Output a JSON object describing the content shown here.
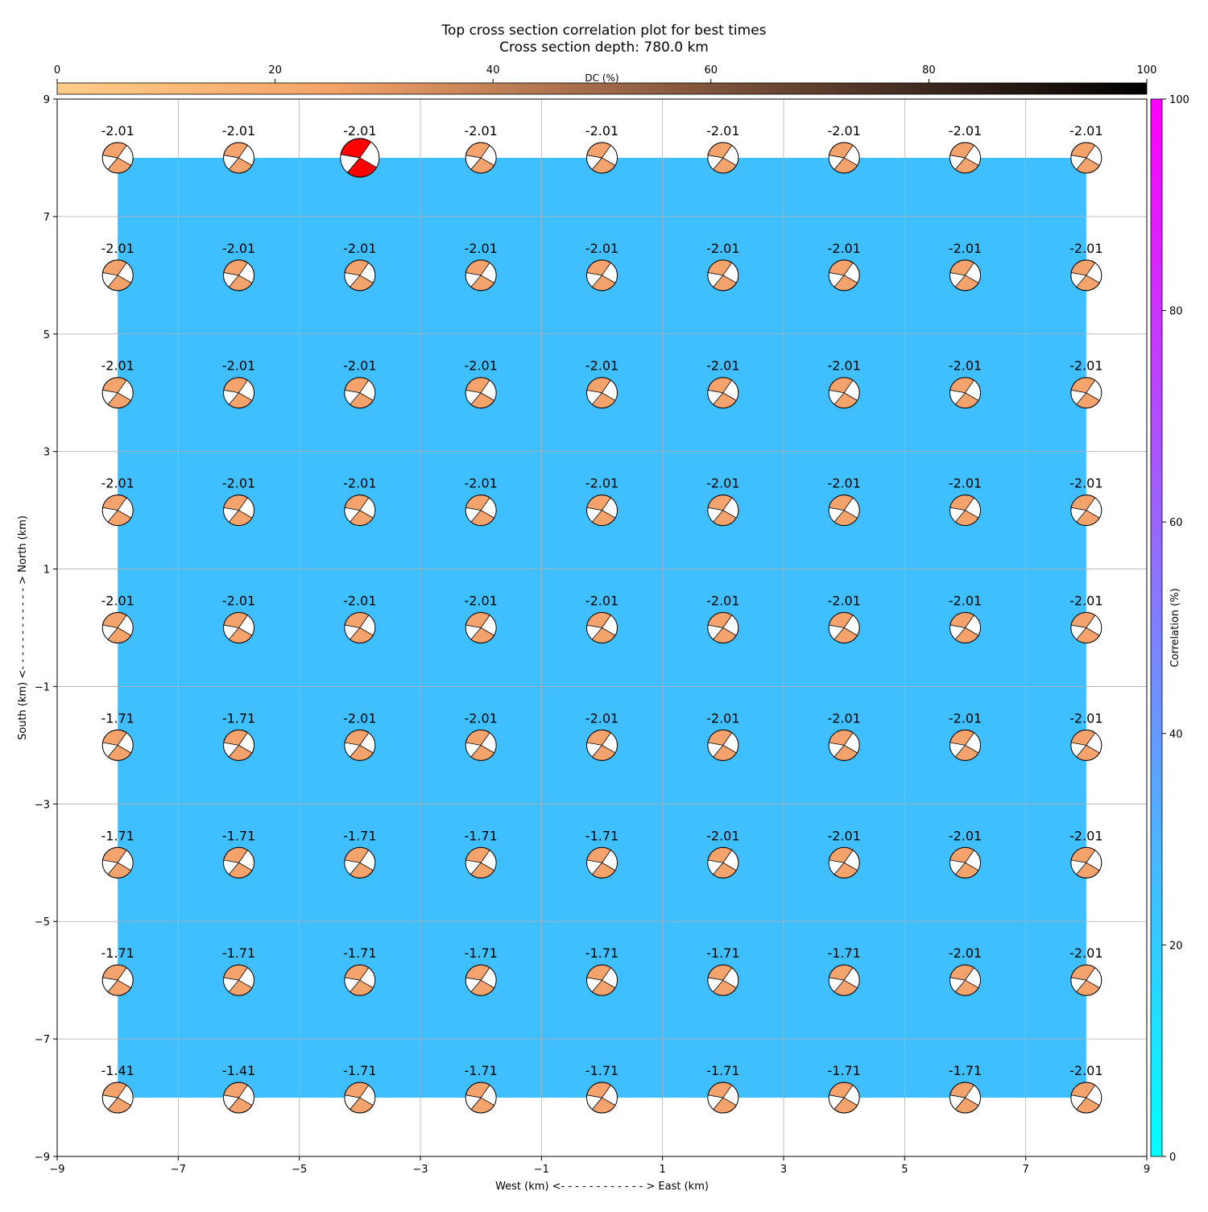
{
  "chart_data": {
    "type": "scatter",
    "title": "Top cross section correlation plot for best times",
    "subtitle": "Cross section depth: 780.0 km",
    "xlabel": "West (km) <- - - - - - - - - - - - > East (km)",
    "ylabel": "South (km) <- - - - - - - - - - - - > North (km)",
    "xlim": [
      -9,
      9
    ],
    "ylim": [
      -9,
      9
    ],
    "xticks": [
      -9,
      -7,
      -5,
      -3,
      -1,
      1,
      3,
      5,
      7,
      9
    ],
    "yticks": [
      -9,
      -7,
      -5,
      -3,
      -1,
      1,
      3,
      5,
      7,
      9
    ],
    "tick_labels": {
      "x": [
        "−9",
        "−7",
        "−5",
        "−3",
        "−1",
        "1",
        "3",
        "5",
        "7",
        "9"
      ],
      "y": [
        "−9",
        "−7",
        "−5",
        "−3",
        "−1",
        "1",
        "3",
        "5",
        "7",
        "9"
      ]
    },
    "grid": true,
    "background_field": {
      "value": 25,
      "unit": "Correlation (%)",
      "x_range": [
        -8,
        8
      ],
      "y_range": [
        -8,
        8
      ],
      "color": "#40bfff"
    },
    "dc_colorbar": {
      "label": "DC (%)",
      "range": [
        0,
        100
      ],
      "ticks": [
        0,
        20,
        40,
        60,
        80,
        100
      ],
      "position": "top",
      "colors": [
        "#ffcc88",
        "#f4a368",
        "#a0694a",
        "#4d3326",
        "#000000"
      ]
    },
    "correlation_colorbar": {
      "label": "Correlation (%)",
      "range": [
        0,
        100
      ],
      "ticks": [
        0,
        20,
        40,
        60,
        80,
        100
      ],
      "position": "right",
      "colors": [
        "#00ffff",
        "#ff00ff"
      ]
    },
    "grid_x": [
      -8,
      -6,
      -4,
      -2,
      0,
      2,
      4,
      6,
      8
    ],
    "grid_y": [
      8,
      6,
      4,
      2,
      0,
      -2,
      -4,
      -6,
      -8
    ],
    "best_solution": {
      "x": -4,
      "y": 8,
      "color": "#ff0000"
    },
    "beachball_color": "#f5a36c",
    "rows": [
      {
        "y": 8,
        "labels": [
          "-2.01",
          "-2.01",
          "-2.01",
          "-2.01",
          "-2.01",
          "-2.01",
          "-2.01",
          "-2.01",
          "-2.01"
        ]
      },
      {
        "y": 6,
        "labels": [
          "-2.01",
          "-2.01",
          "-2.01",
          "-2.01",
          "-2.01",
          "-2.01",
          "-2.01",
          "-2.01",
          "-2.01"
        ]
      },
      {
        "y": 4,
        "labels": [
          "-2.01",
          "-2.01",
          "-2.01",
          "-2.01",
          "-2.01",
          "-2.01",
          "-2.01",
          "-2.01",
          "-2.01"
        ]
      },
      {
        "y": 2,
        "labels": [
          "-2.01",
          "-2.01",
          "-2.01",
          "-2.01",
          "-2.01",
          "-2.01",
          "-2.01",
          "-2.01",
          "-2.01"
        ]
      },
      {
        "y": 0,
        "labels": [
          "-2.01",
          "-2.01",
          "-2.01",
          "-2.01",
          "-2.01",
          "-2.01",
          "-2.01",
          "-2.01",
          "-2.01"
        ]
      },
      {
        "y": -2,
        "labels": [
          "-1.71",
          "-1.71",
          "-2.01",
          "-2.01",
          "-2.01",
          "-2.01",
          "-2.01",
          "-2.01",
          "-2.01"
        ]
      },
      {
        "y": -4,
        "labels": [
          "-1.71",
          "-1.71",
          "-1.71",
          "-1.71",
          "-1.71",
          "-2.01",
          "-2.01",
          "-2.01",
          "-2.01"
        ]
      },
      {
        "y": -6,
        "labels": [
          "-1.71",
          "-1.71",
          "-1.71",
          "-1.71",
          "-1.71",
          "-1.71",
          "-1.71",
          "-2.01",
          "-2.01"
        ]
      },
      {
        "y": -8,
        "labels": [
          "-1.41",
          "-1.41",
          "-1.71",
          "-1.71",
          "-1.71",
          "-1.71",
          "-1.71",
          "-1.71",
          "-2.01"
        ]
      }
    ]
  }
}
